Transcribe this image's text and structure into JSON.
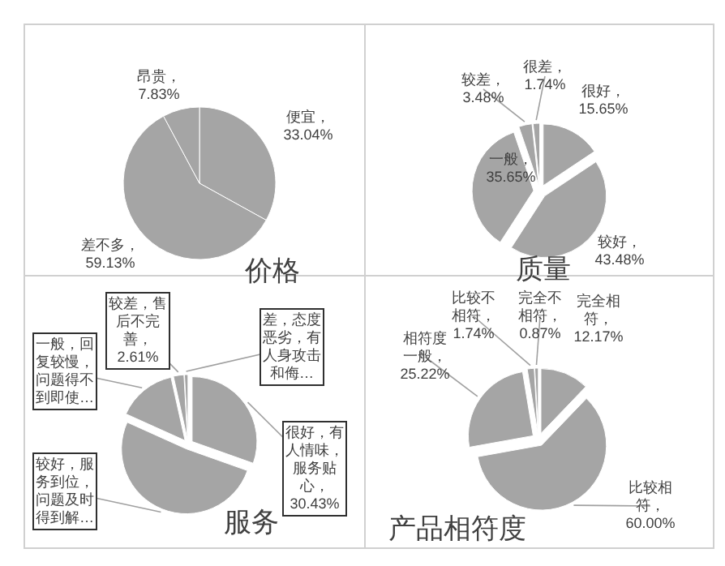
{
  "chart_data": [
    {
      "type": "pie",
      "title": "价格",
      "categories": [
        "便宜",
        "差不多",
        "昂贵"
      ],
      "values": [
        33.04,
        59.13,
        7.83
      ],
      "value_labels": [
        "，33.04%",
        "，59.13%",
        "，7.83%"
      ],
      "colors": [
        "#a5a5a5",
        "#a5a5a5",
        "#a5a5a5"
      ]
    },
    {
      "type": "pie",
      "title": "质量",
      "categories": [
        "很好",
        "较好",
        "一般",
        "较差",
        "很差"
      ],
      "values": [
        15.65,
        43.48,
        35.65,
        3.48,
        1.74
      ],
      "value_labels": [
        "，15.65%",
        "，43.48%",
        "，35.65%",
        "，3.48%",
        "，1.74%"
      ],
      "colors": [
        "#a5a5a5",
        "#a5a5a5",
        "#a5a5a5",
        "#a5a5a5",
        "#a5a5a5"
      ]
    },
    {
      "type": "pie",
      "title": "服务",
      "categories": [
        "很好，有人情味，服务贴心",
        "较好，服务到位，问题及时得到解…",
        "一般，回复较慢，问题得不到即使…",
        "较差，售后不完善",
        "差，态度恶劣，有人身攻击和侮…"
      ],
      "values": [
        30.43,
        51.3,
        14.78,
        2.61,
        0.87
      ],
      "value_labels": [
        "，30.43%",
        null,
        null,
        "，2.61%",
        null
      ],
      "colors": [
        "#a5a5a5",
        "#a5a5a5",
        "#a5a5a5",
        "#a5a5a5",
        "#a5a5a5"
      ]
    },
    {
      "type": "pie",
      "title": "产品相符度",
      "categories": [
        "完全相符",
        "比较相符",
        "相符度一般",
        "比较不相符",
        "完全不相符"
      ],
      "values": [
        12.17,
        60.0,
        25.22,
        1.74,
        0.87
      ],
      "value_labels": [
        "，12.17%",
        "，60.00%",
        "，25.22%",
        "，1.74%",
        "，0.87%"
      ],
      "colors": [
        "#a5a5a5",
        "#a5a5a5",
        "#a5a5a5",
        "#a5a5a5",
        "#a5a5a5"
      ]
    }
  ]
}
